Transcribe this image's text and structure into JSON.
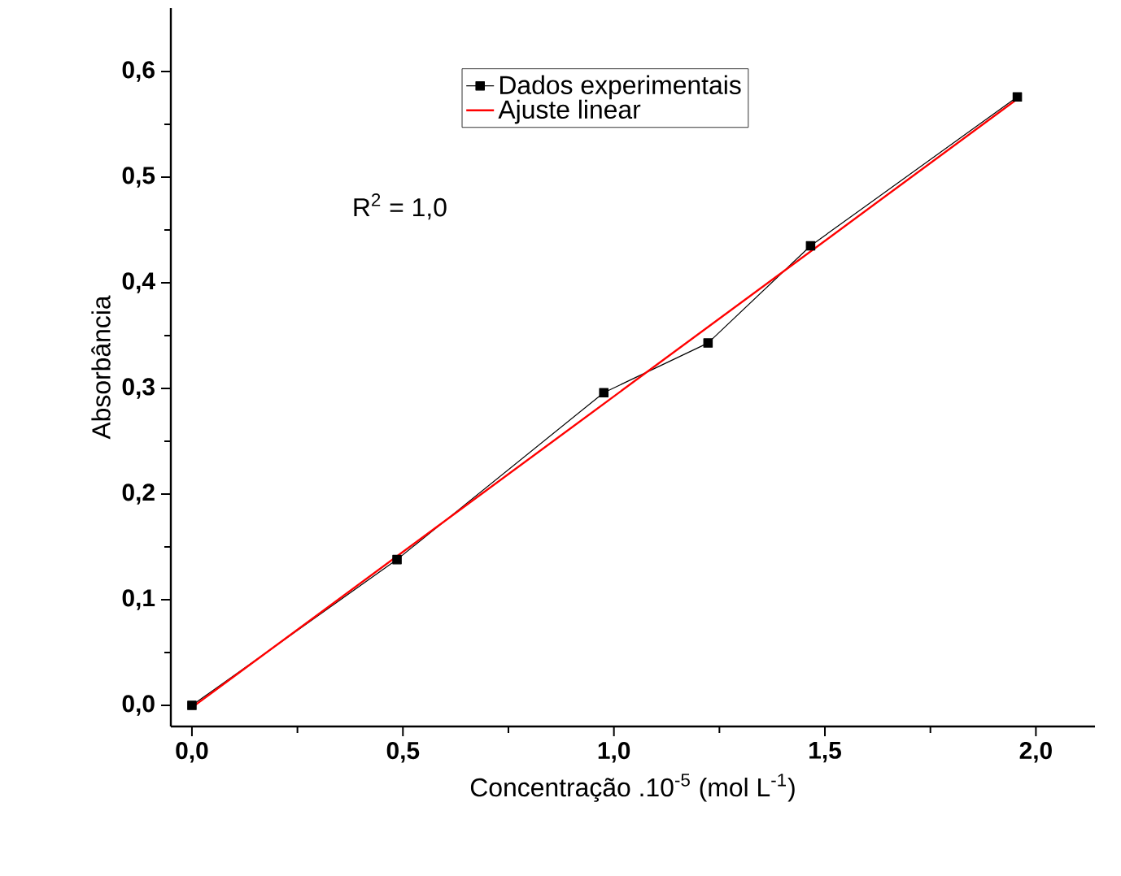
{
  "chart_data": {
    "type": "line",
    "xlabel": "Concentração .10$^{-5}$ (mol L$^{-1}$)",
    "ylabel": "Absorbância",
    "xlim": [
      -0.05,
      2.14
    ],
    "ylim": [
      -0.02,
      0.66
    ],
    "xticks": [
      {
        "value": 0,
        "label": "0,0"
      },
      {
        "value": 0.5,
        "label": "0,5"
      },
      {
        "value": 1.0,
        "label": "1,0"
      },
      {
        "value": 1.5,
        "label": "1,5"
      },
      {
        "value": 2.0,
        "label": "2,0"
      }
    ],
    "yticks": [
      {
        "value": 0,
        "label": "0,0"
      },
      {
        "value": 0.1,
        "label": "0,1"
      },
      {
        "value": 0.2,
        "label": "0,2"
      },
      {
        "value": 0.3,
        "label": "0,3"
      },
      {
        "value": 0.4,
        "label": "0,4"
      },
      {
        "value": 0.5,
        "label": "0,5"
      },
      {
        "value": 0.6,
        "label": "0,6"
      }
    ],
    "series": [
      {
        "name": "Dados experimentais",
        "color": "#000000",
        "marker": "square",
        "x": [
          0,
          0.486,
          0.976,
          1.223,
          1.466,
          1.956
        ],
        "values": [
          0.0,
          0.138,
          0.296,
          0.343,
          0.435,
          0.576
        ]
      },
      {
        "name": "Ajuste linear",
        "color": "#ff0000",
        "marker": "none",
        "x": [
          0,
          1.956
        ],
        "values": [
          -0.002,
          0.574
        ]
      }
    ],
    "annotations": [
      "R$^{2}$ = 1,0"
    ],
    "legend": "top",
    "grid": false
  }
}
